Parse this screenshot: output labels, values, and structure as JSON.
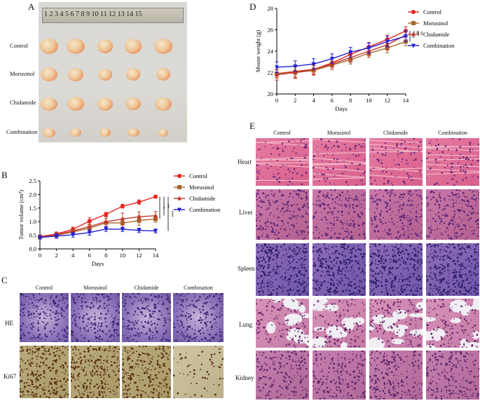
{
  "panels": {
    "A": {
      "letter": "A",
      "ruler_text": "1 2 3 4 5 6 7 8 9 10 11 12 13 14 15",
      "rows": [
        "Control",
        "Morusinol",
        "Chidamide",
        "Combination"
      ]
    },
    "B": {
      "letter": "B"
    },
    "C": {
      "letter": "C",
      "columns": [
        "Control",
        "Morusinol",
        "Chidamide",
        "Combination"
      ],
      "rows": [
        "HE",
        "Ki67"
      ]
    },
    "D": {
      "letter": "D"
    },
    "E": {
      "letter": "E",
      "columns": [
        "Control",
        "Morusinol",
        "Chidamide",
        "Combination"
      ],
      "rows": [
        "Heart",
        "Liver",
        "Spleen",
        "Lung",
        "Kidney"
      ]
    }
  },
  "colors": {
    "control": "#e8231f",
    "morusinol": "#a9662b",
    "chidamide": "#c0392b",
    "combination": "#1f1fd6"
  },
  "chart_data": [
    {
      "id": "B",
      "type": "line",
      "xlabel": "Days",
      "ylabel": "Tumor volume (cm³)",
      "xlim": [
        0,
        14
      ],
      "ylim": [
        0,
        2.5
      ],
      "xticks": [
        0,
        2,
        4,
        6,
        8,
        10,
        12,
        14
      ],
      "yticks": [
        0.0,
        0.5,
        1.0,
        1.5,
        2.0,
        2.5
      ],
      "ytick_labels": [
        "0.0",
        "0.5",
        "1.0",
        "1.5",
        "2.0",
        "2.5"
      ],
      "legend_position": "right",
      "significance": [
        "*",
        "**",
        "***"
      ],
      "x": [
        0,
        2,
        4,
        6,
        8,
        10,
        12,
        14
      ],
      "series": [
        {
          "name": "Control",
          "marker": "circle",
          "color": "#e8231f",
          "values": [
            0.45,
            0.55,
            0.72,
            1.02,
            1.27,
            1.57,
            1.72,
            1.92
          ],
          "errors": [
            0.06,
            0.07,
            0.08,
            0.12,
            0.07,
            0.07,
            0.08,
            0.05
          ]
        },
        {
          "name": "Morusinol",
          "marker": "square",
          "color": "#a9662b",
          "values": [
            0.44,
            0.5,
            0.62,
            0.76,
            0.96,
            0.95,
            1.04,
            1.1
          ],
          "errors": [
            0.06,
            0.08,
            0.1,
            0.12,
            0.15,
            0.18,
            0.18,
            0.12
          ]
        },
        {
          "name": "Chidamide",
          "marker": "triangle",
          "color": "#c0392b",
          "values": [
            0.45,
            0.52,
            0.66,
            0.82,
            1.0,
            1.1,
            1.18,
            1.22
          ],
          "errors": [
            0.06,
            0.07,
            0.1,
            0.14,
            0.18,
            0.22,
            0.18,
            0.15
          ]
        },
        {
          "name": "Combination",
          "marker": "triangle-down",
          "color": "#1f1fd6",
          "values": [
            0.42,
            0.47,
            0.52,
            0.6,
            0.73,
            0.72,
            0.68,
            0.66
          ],
          "errors": [
            0.06,
            0.08,
            0.09,
            0.1,
            0.09,
            0.08,
            0.08,
            0.07
          ]
        }
      ]
    },
    {
      "id": "D",
      "type": "line",
      "xlabel": "Days",
      "ylabel": "Mouse weight (g)",
      "xlim": [
        0,
        14
      ],
      "ylim": [
        20,
        28
      ],
      "xticks": [
        0,
        2,
        4,
        6,
        8,
        10,
        12,
        14
      ],
      "yticks": [
        20,
        22,
        24,
        26,
        28
      ],
      "ytick_labels": [
        "20",
        "22",
        "24",
        "26",
        "28"
      ],
      "legend_position": "right",
      "significance": [
        "ns",
        "ns",
        "ns"
      ],
      "x": [
        0,
        2,
        4,
        6,
        8,
        10,
        12,
        14
      ],
      "series": [
        {
          "name": "Control",
          "marker": "circle",
          "color": "#e8231f",
          "values": [
            21.9,
            22.1,
            22.3,
            22.9,
            23.7,
            24.4,
            25.1,
            25.9
          ],
          "errors": [
            0.35,
            0.5,
            0.4,
            0.4,
            0.35,
            0.35,
            0.4,
            0.4
          ]
        },
        {
          "name": "Morusinol",
          "marker": "square",
          "color": "#a9662b",
          "values": [
            21.9,
            22.0,
            22.2,
            22.7,
            23.2,
            23.8,
            24.3,
            24.9
          ],
          "errors": [
            0.4,
            0.5,
            0.45,
            0.4,
            0.4,
            0.4,
            0.45,
            0.4
          ]
        },
        {
          "name": "Chidamide",
          "marker": "triangle",
          "color": "#c0392b",
          "values": [
            21.8,
            22.0,
            22.3,
            22.8,
            23.4,
            24.0,
            24.6,
            25.5
          ],
          "errors": [
            0.5,
            0.55,
            0.5,
            0.5,
            0.45,
            0.45,
            0.5,
            0.45
          ]
        },
        {
          "name": "Combination",
          "marker": "triangle-down",
          "color": "#1f1fd6",
          "values": [
            22.5,
            22.6,
            22.8,
            23.3,
            23.9,
            24.3,
            24.9,
            25.4
          ],
          "errors": [
            0.5,
            0.5,
            0.5,
            0.45,
            0.45,
            0.5,
            0.5,
            0.5
          ]
        }
      ]
    }
  ]
}
